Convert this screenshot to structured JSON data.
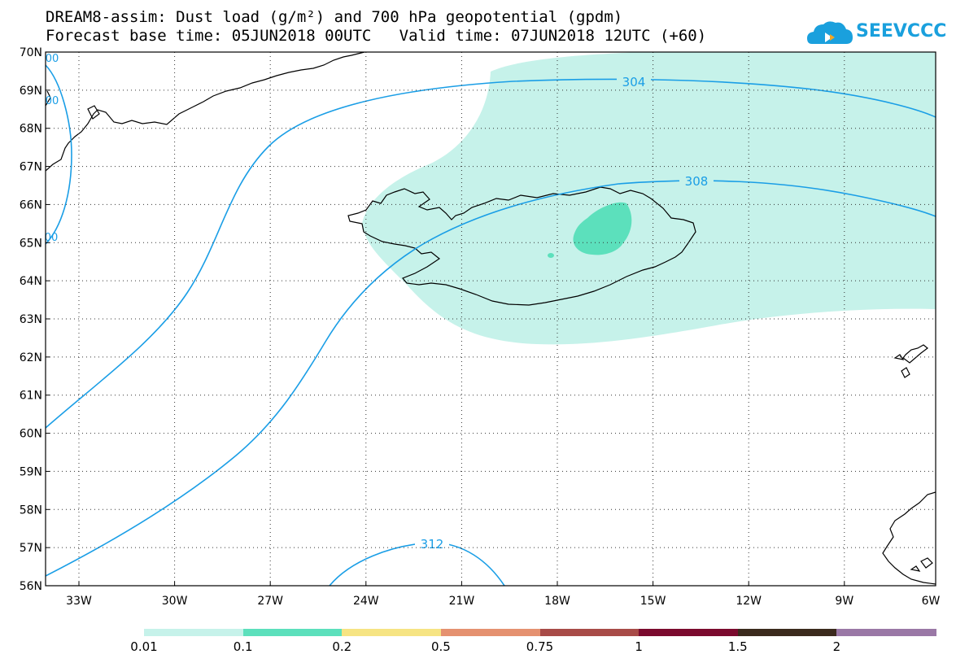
{
  "title": {
    "line1": "DREAM8-assim: Dust load (g/m²) and 700 hPa geopotential (gpdm)",
    "line2": "Forecast base time: 05JUN2018 00UTC   Valid time: 07JUN2018 12UTC (+60)"
  },
  "logo": {
    "text": "SEEVCCC"
  },
  "map": {
    "lat_labels": [
      "70N",
      "69N",
      "68N",
      "67N",
      "66N",
      "65N",
      "64N",
      "63N",
      "62N",
      "61N",
      "60N",
      "59N",
      "58N",
      "57N",
      "56N"
    ],
    "lon_labels": [
      "33W",
      "30W",
      "27W",
      "24W",
      "21W",
      "18W",
      "15W",
      "12W",
      "9W",
      "6W"
    ],
    "contour_labels": {
      "c304": "304",
      "c308": "308",
      "c312": "312",
      "c300a": "00",
      "c300b": "00",
      "c300c": "00"
    }
  },
  "colorbar": {
    "labels": [
      "0.01",
      "0.1",
      "0.2",
      "0.5",
      "0.75",
      "1",
      "1.5",
      "2"
    ],
    "colors": [
      "#c6f2ea",
      "#5ce0bc",
      "#f6e483",
      "#e59170",
      "#a84b48",
      "#7b0a2e",
      "#3b2a1d",
      "#9a78a6"
    ]
  },
  "colors": {
    "dust_light": "#c6f2ea",
    "dust_medium": "#5ce0bc",
    "contour": "#1a9ee6",
    "coast": "#000000"
  }
}
